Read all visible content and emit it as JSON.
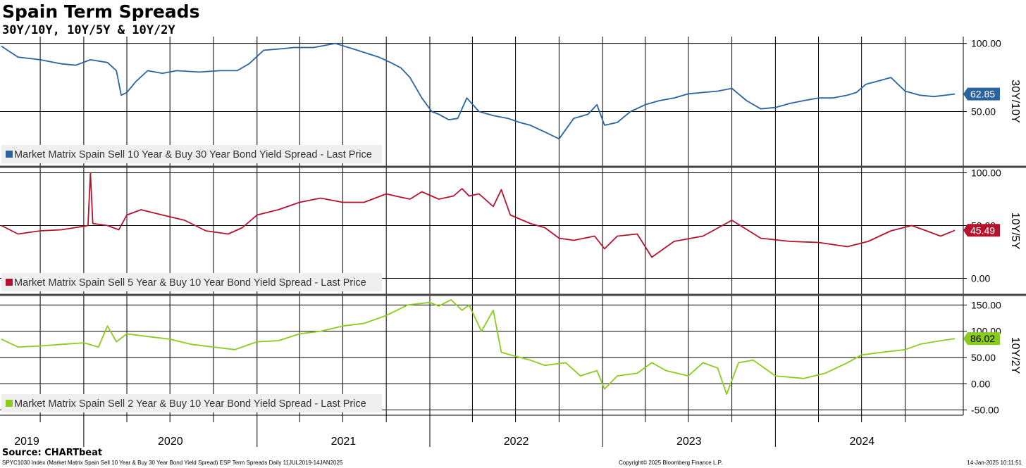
{
  "title": "Spain Term Spreads",
  "subtitle": "30Y/10Y, 10Y/5Y & 10Y/2Y",
  "source": "Source: CHARTbeat",
  "footer": {
    "description": "SPYC1030 Index (Market Matrix Spain Sell 10 Year & Buy 30 Year Bond Yield Spread) ESP Term Spreads  Daily 11JUL2019-14JAN2025",
    "copyright": "Copyright© 2025 Bloomberg Finance L.P.",
    "timestamp": "14-Jan-2025 10:11:51"
  },
  "chart_data": [
    {
      "type": "line",
      "axis_label": "30Y/10Y",
      "last_price": "62.85",
      "color": "#2a64a0",
      "legend": "Market Matrix Spain Sell 10 Year & Buy 30 Year Bond Yield Spread - Last Price",
      "legend_position": "bottom-left",
      "y_ticks": [
        "100.00",
        "50.00"
      ],
      "y_tick_values": [
        100,
        50
      ],
      "ylim": [
        10,
        105
      ],
      "series": [
        {
          "name": "Market Matrix Spain Sell 10 Year & Buy 30 Year Bond Yield Spread - Last Price",
          "x": [
            "2019-07-11",
            "2019-08-15",
            "2019-10-01",
            "2019-11-15",
            "2019-12-15",
            "2020-01-15",
            "2020-02-20",
            "2020-03-10",
            "2020-03-20",
            "2020-04-01",
            "2020-04-20",
            "2020-05-15",
            "2020-06-15",
            "2020-07-15",
            "2020-09-01",
            "2020-10-15",
            "2020-11-20",
            "2020-12-15",
            "2021-01-15",
            "2021-02-20",
            "2021-03-20",
            "2021-05-01",
            "2021-06-15",
            "2021-08-01",
            "2021-09-15",
            "2021-10-10",
            "2021-11-01",
            "2021-11-20",
            "2021-12-15",
            "2022-01-05",
            "2022-01-20",
            "2022-02-10",
            "2022-03-01",
            "2022-03-20",
            "2022-04-15",
            "2022-05-15",
            "2022-06-15",
            "2022-07-10",
            "2022-08-01",
            "2022-09-01",
            "2022-10-01",
            "2022-11-01",
            "2022-12-01",
            "2022-12-20",
            "2023-01-05",
            "2023-02-01",
            "2023-03-01",
            "2023-04-01",
            "2023-05-01",
            "2023-06-01",
            "2023-07-01",
            "2023-08-01",
            "2023-09-01",
            "2023-10-01",
            "2023-11-01",
            "2023-12-01",
            "2024-01-01",
            "2024-02-01",
            "2024-03-01",
            "2024-04-01",
            "2024-05-01",
            "2024-06-01",
            "2024-06-20",
            "2024-07-10",
            "2024-08-01",
            "2024-09-01",
            "2024-10-01",
            "2024-11-01",
            "2024-12-01",
            "2025-01-14"
          ],
          "values": [
            98,
            90,
            88,
            85,
            84,
            88,
            86,
            80,
            62,
            64,
            72,
            80,
            78,
            80,
            79,
            80,
            80,
            85,
            95,
            96,
            97,
            97,
            100,
            95,
            90,
            86,
            82,
            75,
            60,
            50,
            48,
            44,
            45,
            60,
            50,
            47,
            45,
            42,
            40,
            35,
            30,
            45,
            48,
            55,
            40,
            42,
            50,
            55,
            58,
            60,
            63,
            64,
            65,
            67,
            58,
            52,
            53,
            56,
            58,
            60,
            60,
            62,
            64,
            70,
            72,
            75,
            65,
            62,
            61,
            62.85
          ]
        }
      ]
    },
    {
      "type": "line",
      "axis_label": "10Y/5Y",
      "last_price": "45.49",
      "color": "#b5122e",
      "legend": "Market Matrix Spain Sell 5 Year & Buy 10 Year Bond Yield Spread - Last Price",
      "legend_position": "bottom-left",
      "y_ticks": [
        "100.00",
        "50.00",
        "0.00"
      ],
      "y_tick_values": [
        100,
        50,
        0
      ],
      "ylim": [
        -15,
        105
      ],
      "series": [
        {
          "name": "Market Matrix Spain Sell 5 Year & Buy 10 Year Bond Yield Spread - Last Price",
          "x": [
            "2019-07-11",
            "2019-08-15",
            "2019-10-01",
            "2019-11-15",
            "2020-01-10",
            "2020-01-15",
            "2020-01-20",
            "2020-02-20",
            "2020-03-15",
            "2020-04-01",
            "2020-05-01",
            "2020-06-15",
            "2020-08-01",
            "2020-09-15",
            "2020-11-01",
            "2020-12-01",
            "2021-01-01",
            "2021-02-15",
            "2021-04-01",
            "2021-05-15",
            "2021-07-01",
            "2021-08-15",
            "2021-10-01",
            "2021-10-20",
            "2021-11-20",
            "2021-12-15",
            "2022-01-20",
            "2022-02-20",
            "2022-03-10",
            "2022-03-25",
            "2022-04-15",
            "2022-05-15",
            "2022-06-01",
            "2022-06-20",
            "2022-08-01",
            "2022-09-01",
            "2022-10-01",
            "2022-11-01",
            "2022-12-15",
            "2023-01-05",
            "2023-02-01",
            "2023-03-15",
            "2023-03-25",
            "2023-04-15",
            "2023-06-01",
            "2023-08-01",
            "2023-10-01",
            "2023-12-01",
            "2024-02-01",
            "2024-04-01",
            "2024-06-01",
            "2024-07-15",
            "2024-09-01",
            "2024-10-15",
            "2024-11-15",
            "2024-12-15",
            "2025-01-14"
          ],
          "values": [
            50,
            42,
            45,
            46,
            50,
            100,
            52,
            50,
            46,
            60,
            65,
            60,
            55,
            45,
            42,
            48,
            60,
            65,
            72,
            76,
            72,
            72,
            80,
            78,
            75,
            82,
            75,
            78,
            85,
            78,
            80,
            68,
            84,
            60,
            52,
            48,
            38,
            36,
            40,
            28,
            40,
            42,
            35,
            20,
            35,
            40,
            55,
            38,
            35,
            34,
            30,
            35,
            45,
            50,
            45,
            40,
            45.49
          ]
        }
      ]
    },
    {
      "type": "line",
      "axis_label": "10Y/2Y",
      "last_price": "86.02",
      "color": "#8acc1c",
      "legend": "Market Matrix Spain Sell 2 Year & Buy 10 Year Bond Yield Spread - Last Price",
      "legend_position": "bottom-left",
      "y_ticks": [
        "150.00",
        "100.00",
        "50.00",
        "0.00",
        "-50.00"
      ],
      "y_tick_values": [
        150,
        100,
        50,
        0,
        -50
      ],
      "ylim": [
        -60,
        168
      ],
      "series": [
        {
          "name": "Market Matrix Spain Sell 2 Year & Buy 10 Year Bond Yield Spread - Last Price",
          "x": [
            "2019-07-11",
            "2019-08-15",
            "2019-10-01",
            "2019-11-15",
            "2020-01-01",
            "2020-02-01",
            "2020-02-20",
            "2020-03-10",
            "2020-04-01",
            "2020-05-15",
            "2020-07-01",
            "2020-08-15",
            "2020-10-01",
            "2020-11-15",
            "2021-01-01",
            "2021-02-15",
            "2021-04-01",
            "2021-05-15",
            "2021-07-01",
            "2021-08-15",
            "2021-10-01",
            "2021-11-15",
            "2022-01-01",
            "2022-01-20",
            "2022-02-15",
            "2022-03-10",
            "2022-03-25",
            "2022-04-20",
            "2022-05-15",
            "2022-06-01",
            "2022-06-20",
            "2022-08-01",
            "2022-09-01",
            "2022-10-15",
            "2022-11-15",
            "2022-12-20",
            "2023-01-05",
            "2023-02-01",
            "2023-03-15",
            "2023-04-15",
            "2023-05-15",
            "2023-07-01",
            "2023-08-01",
            "2023-09-01",
            "2023-09-20",
            "2023-10-15",
            "2023-11-15",
            "2024-01-01",
            "2024-03-01",
            "2024-04-15",
            "2024-06-01",
            "2024-07-01",
            "2024-08-15",
            "2024-10-01",
            "2024-11-01",
            "2024-12-01",
            "2025-01-14"
          ],
          "values": [
            85,
            70,
            72,
            75,
            78,
            70,
            110,
            80,
            95,
            90,
            85,
            75,
            70,
            65,
            80,
            82,
            95,
            100,
            110,
            115,
            130,
            150,
            155,
            148,
            160,
            140,
            150,
            100,
            140,
            60,
            55,
            45,
            35,
            40,
            15,
            25,
            -10,
            15,
            20,
            40,
            25,
            15,
            40,
            30,
            -20,
            40,
            45,
            15,
            10,
            20,
            40,
            55,
            60,
            65,
            75,
            80,
            86.02
          ]
        }
      ]
    }
  ],
  "x_axis": {
    "labels": [
      "2019",
      "2020",
      "2021",
      "2022",
      "2023",
      "2024"
    ],
    "start": "2019-07-11",
    "end": "2025-01-14"
  }
}
